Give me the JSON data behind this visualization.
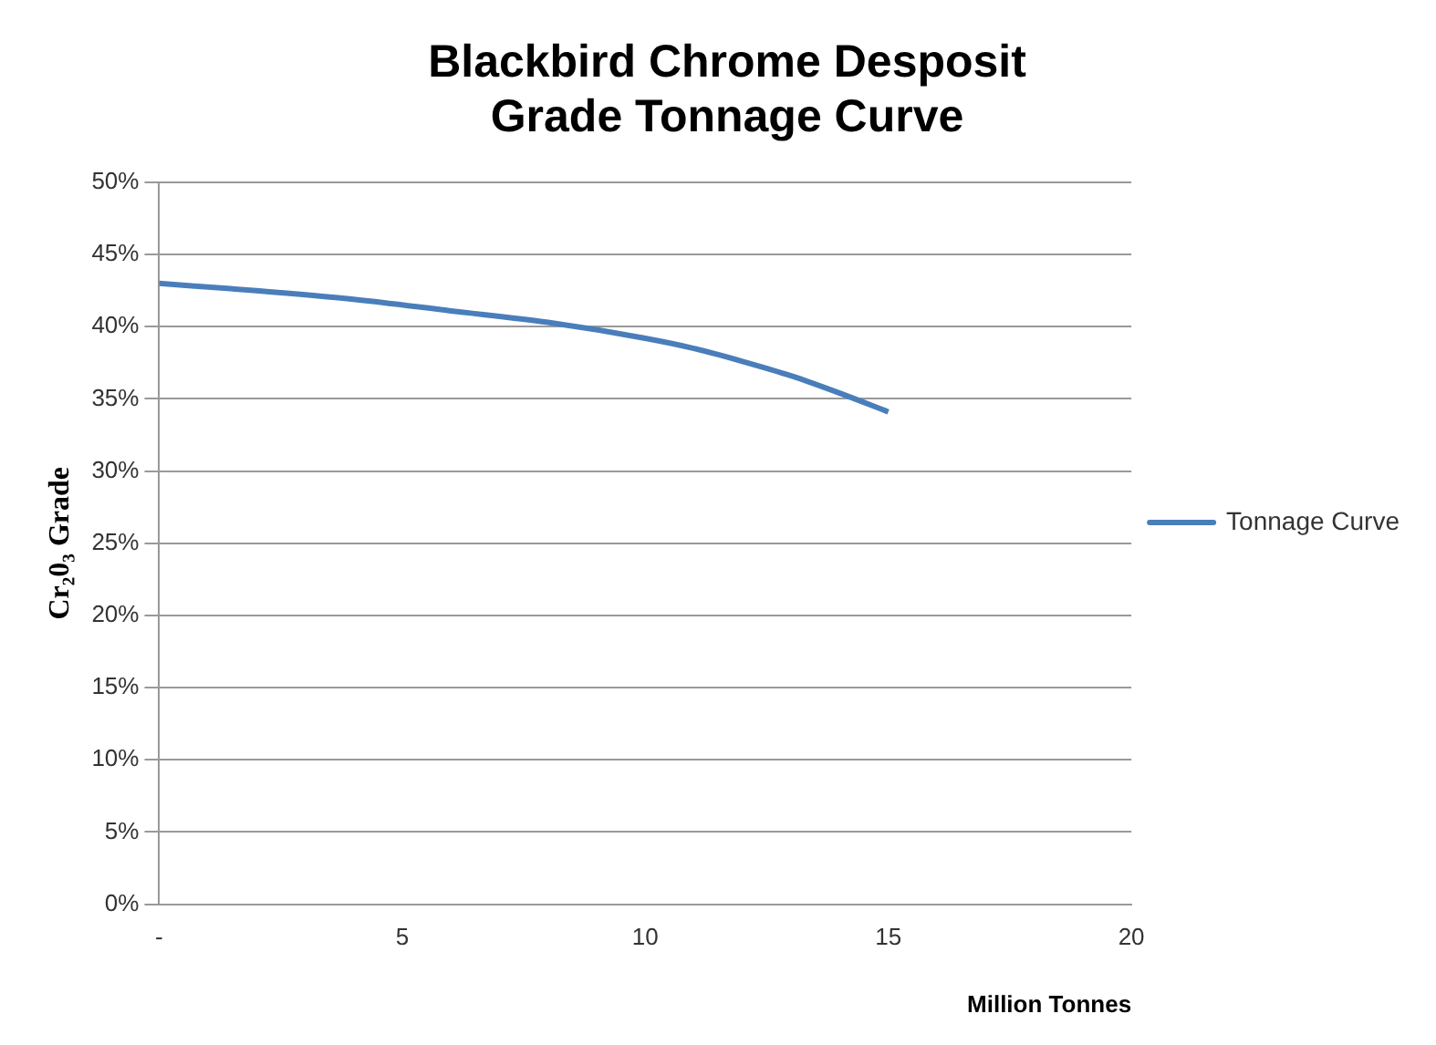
{
  "chart_data": {
    "type": "line",
    "title": "Blackbird Chrome Desposit\nGrade Tonnage Curve",
    "xlabel": "Million Tonnes",
    "ylabel": "Cr₂0₃ Grade",
    "x": [
      0,
      2,
      4,
      6,
      8,
      10,
      11,
      12,
      13,
      14,
      15
    ],
    "series": [
      {
        "name": "Tonnage Curve",
        "color": "#4a7ebb",
        "values": [
          43,
          42.5,
          41.9,
          41.1,
          40.3,
          39.2,
          38.5,
          37.6,
          36.6,
          35.4,
          34.1
        ]
      }
    ],
    "xlim": [
      0,
      20
    ],
    "xticks": [
      {
        "value": 0,
        "label": "-"
      },
      5,
      10,
      15,
      20
    ],
    "ylim": [
      0,
      50
    ],
    "yticks": [
      {
        "value": 0,
        "label": "0%"
      },
      {
        "value": 5,
        "label": "5%"
      },
      {
        "value": 10,
        "label": "10%"
      },
      {
        "value": 15,
        "label": "15%"
      },
      {
        "value": 20,
        "label": "20%"
      },
      {
        "value": 25,
        "label": "25%"
      },
      {
        "value": 30,
        "label": "30%"
      },
      {
        "value": 35,
        "label": "35%"
      },
      {
        "value": 40,
        "label": "40%"
      },
      {
        "value": 45,
        "label": "45%"
      },
      {
        "value": 50,
        "label": "50%"
      }
    ],
    "grid": "y",
    "legend": "right",
    "marker": "none",
    "line_style": "solid"
  }
}
